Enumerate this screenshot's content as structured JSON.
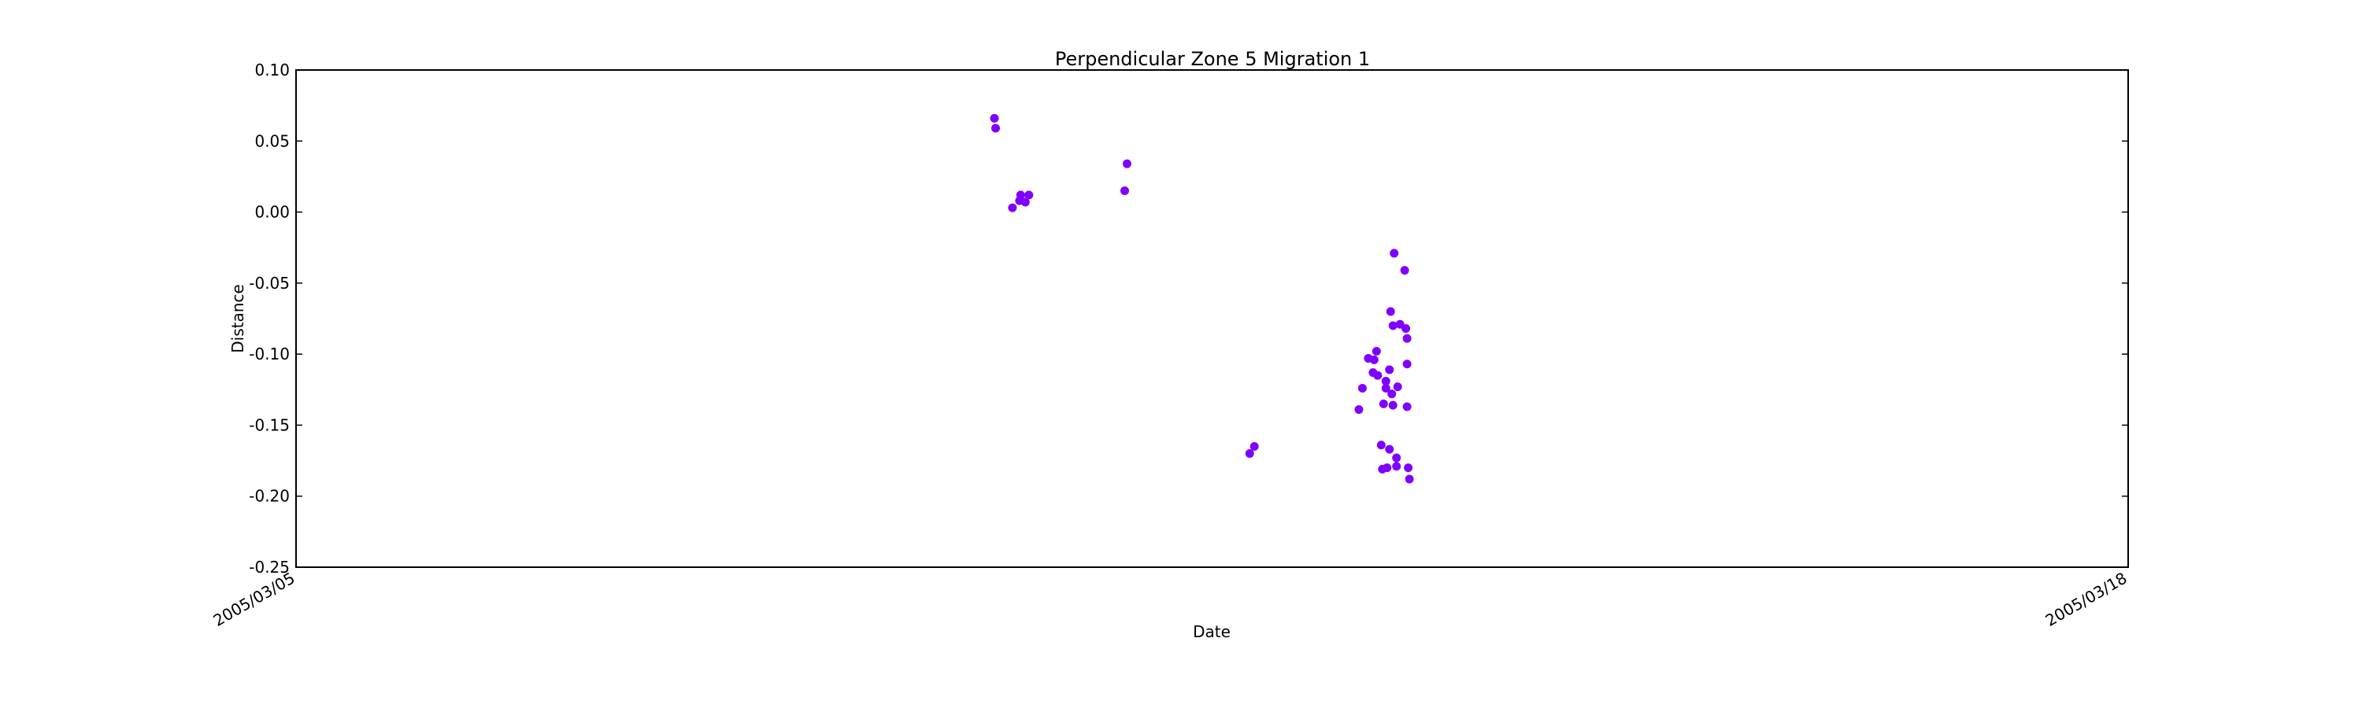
{
  "chart_data": {
    "type": "scatter",
    "title": "Perpendicular Zone 5 Migration 1",
    "xlabel": "Date",
    "ylabel": "Distance",
    "xlim": [
      "2005/03/05",
      "2005/03/18"
    ],
    "x_ticks": [
      "2005/03/05",
      "2005/03/18"
    ],
    "ylim": [
      -0.25,
      0.1
    ],
    "y_ticks": [
      "0.10",
      "0.05",
      "0.00",
      "-0.05",
      "-0.10",
      "-0.15",
      "-0.20",
      "-0.25"
    ],
    "grid": false,
    "marker_color": "#8000ff",
    "series": [
      {
        "points": [
          {
            "x": "2005/03/09 22:56",
            "y": 0.066
          },
          {
            "x": "2005/03/09 23:08",
            "y": 0.059
          },
          {
            "x": "2005/03/10 02:00",
            "y": 0.003
          },
          {
            "x": "2005/03/10 03:12",
            "y": 0.008
          },
          {
            "x": "2005/03/10 03:24",
            "y": 0.012
          },
          {
            "x": "2005/03/10 04:12",
            "y": 0.007
          },
          {
            "x": "2005/03/10 04:48",
            "y": 0.012
          },
          {
            "x": "2005/03/10 21:07",
            "y": 0.015
          },
          {
            "x": "2005/03/10 21:31",
            "y": 0.034
          },
          {
            "x": "2005/03/11 18:24",
            "y": -0.17
          },
          {
            "x": "2005/03/11 19:12",
            "y": -0.165
          },
          {
            "x": "2005/03/12 13:00",
            "y": -0.139
          },
          {
            "x": "2005/03/12 13:36",
            "y": -0.124
          },
          {
            "x": "2005/03/12 14:36",
            "y": -0.103
          },
          {
            "x": "2005/03/12 15:24",
            "y": -0.113
          },
          {
            "x": "2005/03/12 15:36",
            "y": -0.104
          },
          {
            "x": "2005/03/12 16:00",
            "y": -0.098
          },
          {
            "x": "2005/03/12 16:12",
            "y": -0.115
          },
          {
            "x": "2005/03/12 16:48",
            "y": -0.164
          },
          {
            "x": "2005/03/12 17:00",
            "y": -0.181
          },
          {
            "x": "2005/03/12 17:12",
            "y": -0.135
          },
          {
            "x": "2005/03/12 17:48",
            "y": -0.18
          },
          {
            "x": "2005/03/12 17:36",
            "y": -0.124
          },
          {
            "x": "2005/03/12 17:36",
            "y": -0.119
          },
          {
            "x": "2005/03/12 18:12",
            "y": -0.111
          },
          {
            "x": "2005/03/12 18:12",
            "y": -0.167
          },
          {
            "x": "2005/03/12 18:24",
            "y": -0.07
          },
          {
            "x": "2005/03/12 18:36",
            "y": -0.128
          },
          {
            "x": "2005/03/12 18:48",
            "y": -0.08
          },
          {
            "x": "2005/03/12 18:48",
            "y": -0.136
          },
          {
            "x": "2005/03/12 19:00",
            "y": -0.029
          },
          {
            "x": "2005/03/12 19:24",
            "y": -0.179
          },
          {
            "x": "2005/03/12 19:24",
            "y": -0.173
          },
          {
            "x": "2005/03/12 19:36",
            "y": -0.123
          },
          {
            "x": "2005/03/12 20:00",
            "y": -0.079
          },
          {
            "x": "2005/03/12 20:48",
            "y": -0.041
          },
          {
            "x": "2005/03/12 21:00",
            "y": -0.082
          },
          {
            "x": "2005/03/12 21:12",
            "y": -0.089
          },
          {
            "x": "2005/03/12 21:12",
            "y": -0.107
          },
          {
            "x": "2005/03/12 21:12",
            "y": -0.137
          },
          {
            "x": "2005/03/12 21:24",
            "y": -0.18
          },
          {
            "x": "2005/03/12 21:36",
            "y": -0.188
          }
        ]
      }
    ]
  }
}
